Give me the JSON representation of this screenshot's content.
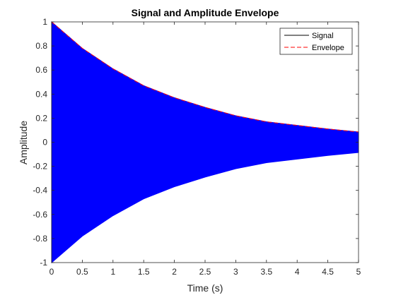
{
  "chart_data": {
    "type": "line",
    "title": "Signal and Amplitude Envelope",
    "xlabel": "Time (s)",
    "ylabel": "Amplitude",
    "xlim": [
      0,
      5
    ],
    "ylim": [
      -1,
      1
    ],
    "grid": false,
    "legend_position": "top-right",
    "x_ticks": [
      0,
      0.5,
      1,
      1.5,
      2,
      2.5,
      3,
      3.5,
      4,
      4.5,
      5
    ],
    "x_tick_labels": [
      "0",
      "0.5",
      "1",
      "1.5",
      "2",
      "2.5",
      "3",
      "3.5",
      "4",
      "4.5",
      "5"
    ],
    "y_ticks": [
      -1,
      -0.8,
      -0.6,
      -0.4,
      -0.2,
      0,
      0.2,
      0.4,
      0.6,
      0.8,
      1
    ],
    "y_tick_labels": [
      "-1",
      "-0.8",
      "-0.6",
      "-0.4",
      "-0.2",
      "0",
      "0.2",
      "0.4",
      "0.6",
      "0.8",
      "1"
    ],
    "series": [
      {
        "name": "Signal",
        "style": "solid",
        "color": "#0000ff",
        "legend_color": "#000000",
        "description": "rapid oscillation filling band between -envelope and +envelope",
        "x": [
          0,
          0.5,
          1,
          1.5,
          2,
          2.5,
          3,
          3.5,
          4,
          4.5,
          5
        ],
        "y_upper": [
          1.0,
          0.78,
          0.61,
          0.47,
          0.37,
          0.29,
          0.22,
          0.17,
          0.14,
          0.11,
          0.085
        ],
        "y_lower": [
          -1.0,
          -0.78,
          -0.61,
          -0.47,
          -0.37,
          -0.29,
          -0.22,
          -0.17,
          -0.14,
          -0.11,
          -0.085
        ]
      },
      {
        "name": "Envelope",
        "style": "dashed",
        "color": "#ff0000",
        "x": [
          0,
          0.5,
          1,
          1.5,
          2,
          2.5,
          3,
          3.5,
          4,
          4.5,
          5
        ],
        "y": [
          1.0,
          0.78,
          0.61,
          0.47,
          0.37,
          0.29,
          0.22,
          0.17,
          0.14,
          0.11,
          0.085
        ]
      }
    ]
  }
}
